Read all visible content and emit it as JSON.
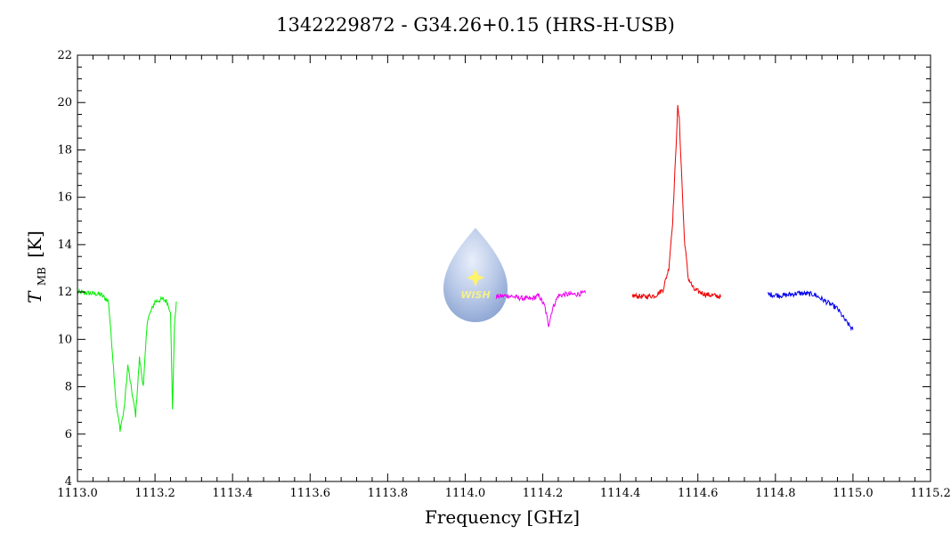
{
  "title": "1342229872 - G34.26+0.15 (HRS-H-USB)",
  "chart_data": {
    "type": "line",
    "title": "1342229872 - G34.26+0.15 (HRS-H-USB)",
    "xlabel": "Frequency [GHz]",
    "ylabel_main": "T",
    "ylabel_sub": "MB",
    "ylabel_unit": "[K]",
    "xlim": [
      1113.0,
      1115.2
    ],
    "ylim": [
      4,
      22
    ],
    "xticks": [
      1113.0,
      1113.2,
      1113.4,
      1113.6,
      1113.8,
      1114.0,
      1114.2,
      1114.4,
      1114.6,
      1114.8,
      1115.0,
      1115.2
    ],
    "xtick_labels": [
      "1113.0",
      "1113.2",
      "1113.4",
      "1113.6",
      "1113.8",
      "1114.0",
      "1114.2",
      "1114.4",
      "1114.6",
      "1114.8",
      "1115.0",
      "1115.2"
    ],
    "yticks": [
      4,
      6,
      8,
      10,
      12,
      14,
      16,
      18,
      20,
      22
    ],
    "ytick_labels": [
      "4",
      "6",
      "8",
      "10",
      "12",
      "14",
      "16",
      "18",
      "20",
      "22"
    ],
    "grid": false,
    "series": [
      {
        "color": "#00ee00",
        "x": [
          1113.0,
          1113.03,
          1113.06,
          1113.08,
          1113.09,
          1113.1,
          1113.11,
          1113.12,
          1113.13,
          1113.14,
          1113.15,
          1113.16,
          1113.17,
          1113.18,
          1113.2,
          1113.22,
          1113.23,
          1113.24,
          1113.245,
          1113.25,
          1113.255
        ],
        "values": [
          12.0,
          11.95,
          11.9,
          11.6,
          9.5,
          7.2,
          6.2,
          7.0,
          8.9,
          7.8,
          6.8,
          9.2,
          8.0,
          10.8,
          11.6,
          11.7,
          11.6,
          11.2,
          7.0,
          10.5,
          11.6
        ]
      },
      {
        "color": "#ee00ee",
        "x": [
          1114.08,
          1114.11,
          1114.14,
          1114.17,
          1114.19,
          1114.205,
          1114.215,
          1114.225,
          1114.24,
          1114.26,
          1114.28,
          1114.31
        ],
        "values": [
          11.8,
          11.85,
          11.75,
          11.7,
          11.85,
          11.4,
          10.6,
          11.3,
          11.85,
          11.9,
          11.9,
          11.95
        ]
      },
      {
        "color": "#ee0000",
        "x": [
          1114.43,
          1114.46,
          1114.49,
          1114.51,
          1114.525,
          1114.535,
          1114.542,
          1114.548,
          1114.552,
          1114.558,
          1114.565,
          1114.575,
          1114.59,
          1114.62,
          1114.66
        ],
        "values": [
          11.85,
          11.8,
          11.85,
          12.1,
          13.0,
          15.0,
          17.5,
          19.8,
          19.3,
          17.0,
          14.3,
          12.6,
          12.1,
          11.9,
          11.8
        ]
      },
      {
        "color": "#0000ee",
        "x": [
          1114.78,
          1114.82,
          1114.86,
          1114.9,
          1114.93,
          1114.96,
          1114.98,
          1115.0
        ],
        "values": [
          11.9,
          11.85,
          11.95,
          11.9,
          11.6,
          11.3,
          10.8,
          10.4
        ]
      }
    ]
  },
  "logo": {
    "text": "WISH",
    "position": "center",
    "colors": {
      "outer": "#6e8cc6",
      "inner": "#d8e4f6",
      "star": "#fff36a",
      "text": "#f5f08a"
    }
  }
}
